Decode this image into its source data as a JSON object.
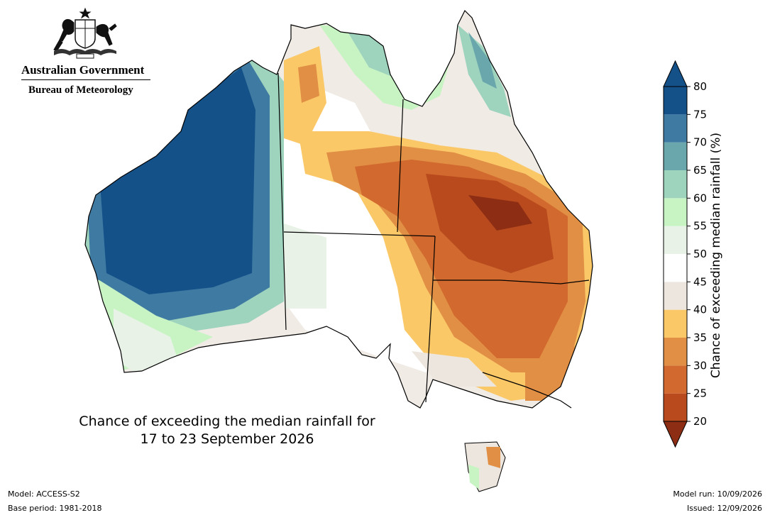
{
  "branding": {
    "government": "Australian Government",
    "agency": "Bureau of Meteorology"
  },
  "map": {
    "title_line1": "Chance of exceeding the median rainfall for",
    "title_line2": "17 to 23 September 2026"
  },
  "legend": {
    "label": "Chance of exceeding median rainfall (%)",
    "ticks": [
      "20",
      "25",
      "30",
      "35",
      "40",
      "45",
      "50",
      "55",
      "60",
      "65",
      "70",
      "75",
      "80"
    ],
    "colors": [
      "#8c2d14",
      "#b84a1d",
      "#d2692e",
      "#e08f45",
      "#fbc868",
      "#ede6df",
      "#ffffff",
      "#e8f2e6",
      "#c8f4c4",
      "#9ed3bd",
      "#6aa7ac",
      "#3f7aa3",
      "#155189"
    ],
    "below_min_color": "#8c2d14",
    "above_max_color": "#155189"
  },
  "footer": {
    "model": "Model: ACCESS-S2",
    "base_period": "Base period: 1981-2018",
    "model_run": "Model run: 10/09/2026",
    "issued": "Issued: 12/09/2026"
  }
}
